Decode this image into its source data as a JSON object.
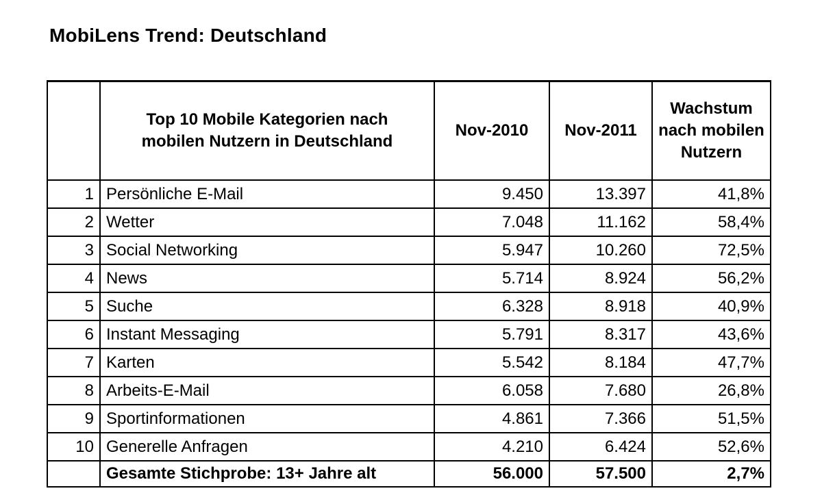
{
  "title": "MobiLens Trend: Deutschland",
  "chart_data": {
    "type": "table",
    "title": "MobiLens Trend: Deutschland",
    "columns": [
      "",
      "Top 10 Mobile Kategorien nach mobilen Nutzern in Deutschland",
      "Nov-2010",
      "Nov-2011",
      "Wachstum nach mobilen Nutzern"
    ],
    "rows": [
      {
        "rank": "1",
        "category": "Persönliche E-Mail",
        "nov2010": "9.450",
        "nov2011": "13.397",
        "growth": "41,8%"
      },
      {
        "rank": "2",
        "category": "Wetter",
        "nov2010": "7.048",
        "nov2011": "11.162",
        "growth": "58,4%"
      },
      {
        "rank": "3",
        "category": "Social Networking",
        "nov2010": "5.947",
        "nov2011": "10.260",
        "growth": "72,5%"
      },
      {
        "rank": "4",
        "category": "News",
        "nov2010": "5.714",
        "nov2011": "8.924",
        "growth": "56,2%"
      },
      {
        "rank": "5",
        "category": "Suche",
        "nov2010": "6.328",
        "nov2011": "8.918",
        "growth": "40,9%"
      },
      {
        "rank": "6",
        "category": "Instant Messaging",
        "nov2010": "5.791",
        "nov2011": "8.317",
        "growth": "43,6%"
      },
      {
        "rank": "7",
        "category": "Karten",
        "nov2010": "5.542",
        "nov2011": "8.184",
        "growth": "47,7%"
      },
      {
        "rank": "8",
        "category": "Arbeits-E-Mail",
        "nov2010": "6.058",
        "nov2011": "7.680",
        "growth": "26,8%"
      },
      {
        "rank": "9",
        "category": "Sportinformationen",
        "nov2010": "4.861",
        "nov2011": "7.366",
        "growth": "51,5%"
      },
      {
        "rank": "10",
        "category": "Generelle Anfragen",
        "nov2010": "4.210",
        "nov2011": "6.424",
        "growth": "52,6%"
      }
    ],
    "total": {
      "label": "Gesamte Stichprobe: 13+ Jahre alt",
      "nov2010": "56.000",
      "nov2011": "57.500",
      "growth": "2,7%"
    }
  }
}
